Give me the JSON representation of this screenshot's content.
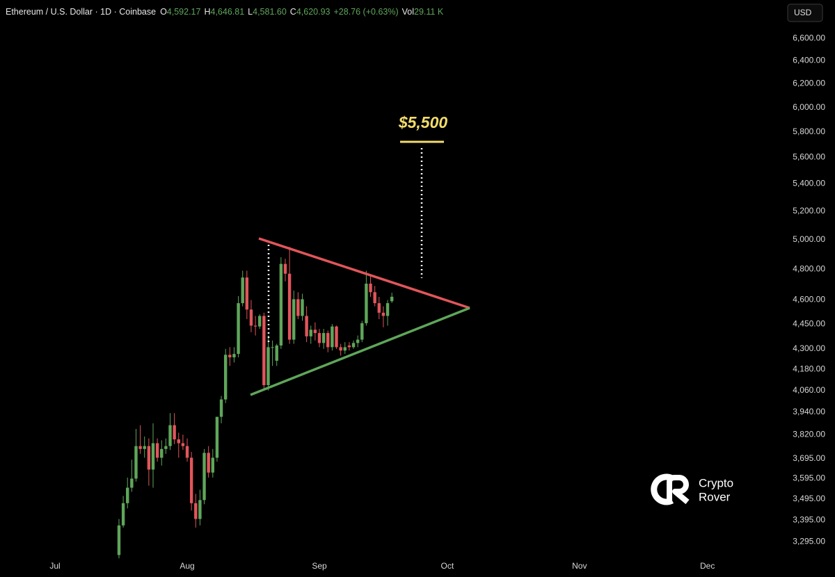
{
  "header": {
    "symbol": "Ethereum / U.S. Dollar · 1D · Coinbase",
    "fields": [
      {
        "key": "O",
        "value": "4,592.17"
      },
      {
        "key": "H",
        "value": "4,646.81"
      },
      {
        "key": "L",
        "value": "4,581.60"
      },
      {
        "key": "C",
        "value": "4,620.93"
      }
    ],
    "change": "+28.76 (+0.63%)",
    "volume_key": "Vol",
    "volume": "29.11 K",
    "currency_button": "USD"
  },
  "watermark": [
    "Crypto",
    "Rover"
  ],
  "chart_data": {
    "type": "candlestick",
    "annotation": "$5,500",
    "log_scale": true,
    "colors": {
      "up": "#5fa65a",
      "down": "#e0565b",
      "annotation": "#f2dc6b"
    },
    "xlim": [
      -12.9,
      166.6
    ],
    "xticks": [
      {
        "value": 0,
        "label": "Jul"
      },
      {
        "value": 31,
        "label": "Aug"
      },
      {
        "value": 62,
        "label": "Sep"
      },
      {
        "value": 92,
        "label": "Oct"
      },
      {
        "value": 123,
        "label": "Nov"
      },
      {
        "value": 153,
        "label": "Dec"
      }
    ],
    "ylim": [
      3230,
      6960
    ],
    "yticks": [
      {
        "value": 6600,
        "label": "6,600.00"
      },
      {
        "value": 6400,
        "label": "6,400.00"
      },
      {
        "value": 6200,
        "label": "6,200.00"
      },
      {
        "value": 6000,
        "label": "6,000.00"
      },
      {
        "value": 5800,
        "label": "5,800.00"
      },
      {
        "value": 5600,
        "label": "5,600.00"
      },
      {
        "value": 5400,
        "label": "5,400.00"
      },
      {
        "value": 5200,
        "label": "5,200.00"
      },
      {
        "value": 5000,
        "label": "5,000.00"
      },
      {
        "value": 4800,
        "label": "4,800.00"
      },
      {
        "value": 4600,
        "label": "4,600.00"
      },
      {
        "value": 4450,
        "label": "4,450.00"
      },
      {
        "value": 4300,
        "label": "4,300.00"
      },
      {
        "value": 4180,
        "label": "4,180.00"
      },
      {
        "value": 4060,
        "label": "4,060.00"
      },
      {
        "value": 3940,
        "label": "3,940.00"
      },
      {
        "value": 3820,
        "label": "3,820.00"
      },
      {
        "value": 3695,
        "label": "3,695.00"
      },
      {
        "value": 3595,
        "label": "3,595.00"
      },
      {
        "value": 3495,
        "label": "3,495.00"
      },
      {
        "value": 3395,
        "label": "3,395.00"
      },
      {
        "value": 3295,
        "label": "3,295.00"
      }
    ],
    "x": [
      15,
      16,
      17,
      18,
      19,
      20,
      21,
      22,
      23,
      24,
      25,
      26,
      27,
      28,
      29,
      30,
      31,
      32,
      33,
      34,
      35,
      36,
      37,
      38,
      39,
      40,
      41,
      42,
      43,
      44,
      45,
      46,
      47,
      48,
      49,
      50,
      51,
      52,
      53,
      54,
      55,
      56,
      57,
      58,
      59,
      60,
      61,
      62,
      63,
      64,
      65,
      66,
      67,
      68,
      69,
      70,
      71,
      72,
      73,
      74,
      75,
      76,
      77,
      78,
      79
    ],
    "open": [
      3235,
      3370,
      3475,
      3550,
      3595,
      3760,
      3745,
      3760,
      3640,
      3775,
      3700,
      3745,
      3760,
      3870,
      3795,
      3775,
      3760,
      3700,
      3475,
      3400,
      3490,
      3725,
      3625,
      3700,
      3915,
      4010,
      4265,
      4250,
      4270,
      4580,
      4745,
      4540,
      4440,
      4435,
      4500,
      4090,
      4310,
      4230,
      4320,
      4835,
      4770,
      4355,
      4605,
      4500,
      4500,
      4375,
      4415,
      4395,
      4335,
      4395,
      4310,
      4435,
      4310,
      4290,
      4320,
      4310,
      4335,
      4355,
      4455,
      4705,
      4650,
      4580,
      4520,
      4500,
      4592.17
    ],
    "high": [
      3400,
      3510,
      3600,
      3690,
      3850,
      3870,
      3810,
      3800,
      3880,
      3800,
      3790,
      3800,
      3935,
      3935,
      3830,
      3820,
      3800,
      3730,
      3520,
      3540,
      3745,
      3760,
      3745,
      3915,
      4030,
      4300,
      4310,
      4310,
      4625,
      4790,
      4790,
      4600,
      4500,
      4510,
      4520,
      4380,
      4350,
      4330,
      4880,
      4870,
      4950,
      4660,
      4650,
      4640,
      4560,
      4440,
      4460,
      4420,
      4420,
      4410,
      4450,
      4440,
      4330,
      4340,
      4340,
      4350,
      4380,
      4470,
      4790,
      4760,
      4690,
      4620,
      4560,
      4600,
      4646.81
    ],
    "low": [
      3220,
      3360,
      3450,
      3530,
      3580,
      3720,
      3700,
      3560,
      3550,
      3680,
      3660,
      3720,
      3740,
      3770,
      3700,
      3740,
      3680,
      3440,
      3360,
      3370,
      3470,
      3600,
      3600,
      3680,
      3880,
      3990,
      4200,
      4220,
      4250,
      4560,
      4480,
      4400,
      4380,
      4420,
      4060,
      4060,
      4200,
      4200,
      4300,
      4720,
      4330,
      4330,
      4480,
      4470,
      4340,
      4330,
      4350,
      4310,
      4300,
      4280,
      4290,
      4300,
      4260,
      4270,
      4290,
      4300,
      4310,
      4340,
      4440,
      4620,
      4560,
      4480,
      4430,
      4440,
      4581.6
    ],
    "close": [
      3370,
      3475,
      3550,
      3595,
      3760,
      3745,
      3760,
      3640,
      3775,
      3700,
      3745,
      3760,
      3870,
      3795,
      3775,
      3760,
      3700,
      3475,
      3400,
      3490,
      3725,
      3625,
      3700,
      3915,
      4010,
      4265,
      4250,
      4270,
      4580,
      4745,
      4540,
      4440,
      4435,
      4500,
      4090,
      4310,
      4310,
      4320,
      4835,
      4770,
      4355,
      4605,
      4500,
      4605,
      4375,
      4415,
      4395,
      4335,
      4395,
      4310,
      4435,
      4310,
      4290,
      4310,
      4310,
      4335,
      4355,
      4455,
      4705,
      4650,
      4580,
      4520,
      4500,
      4580,
      4620.93
    ]
  }
}
